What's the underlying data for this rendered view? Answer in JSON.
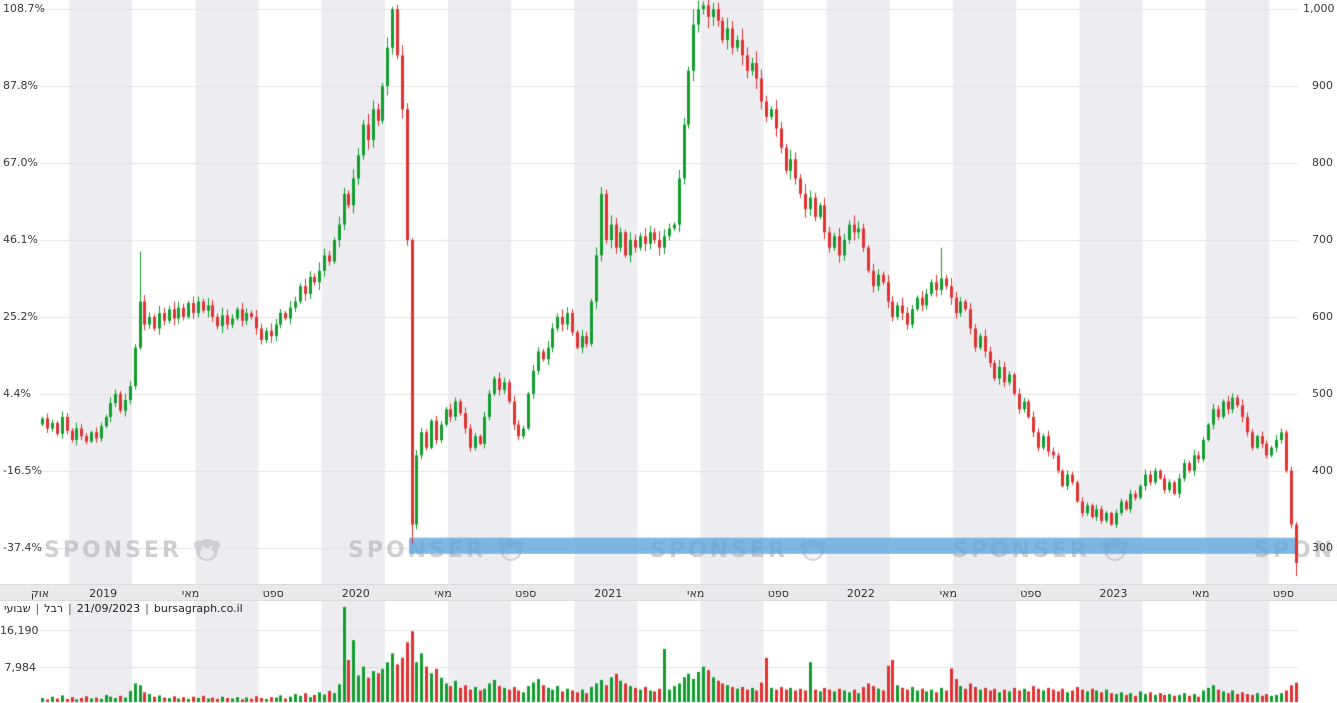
{
  "status": {
    "timeframe": "שבועי",
    "symbol": "רבל",
    "date": "21/09/2023",
    "source": "bursagraph.co.il",
    "separator": "|"
  },
  "watermark": {
    "text": "SPONSER"
  },
  "colors": {
    "up": "#119e2f",
    "down": "#e13232",
    "band": "#5fa6dc",
    "stripe": "#ededf1",
    "grid": "#e3e3e7",
    "axis_strip_bg": "#e9e9ec",
    "label_text": "#3a3a3a",
    "watermark": "#a8a8af"
  },
  "y_axis": {
    "gridlines": [
      {
        "price": 1000,
        "price_label": "1,000",
        "pct_label": "108.7%"
      },
      {
        "price": 900,
        "price_label": "900",
        "pct_label": "87.8%"
      },
      {
        "price": 800,
        "price_label": "800",
        "pct_label": "67.0%"
      },
      {
        "price": 700,
        "price_label": "700",
        "pct_label": "46.1%"
      },
      {
        "price": 600,
        "price_label": "600",
        "pct_label": "25.2%"
      },
      {
        "price": 500,
        "price_label": "500",
        "pct_label": "4.4%"
      },
      {
        "price": 400,
        "price_label": "400",
        "pct_label": "-16.5%"
      },
      {
        "price": 300,
        "price_label": "300",
        "pct_label": "-37.4%"
      }
    ]
  },
  "x_axis": {
    "ticks": [
      {
        "label": "אוק",
        "week": 0
      },
      {
        "label": "2019",
        "week": 13
      },
      {
        "label": "מאי",
        "week": 31
      },
      {
        "label": "ספט",
        "week": 48
      },
      {
        "label": "2020",
        "week": 65
      },
      {
        "label": "מאי",
        "week": 83
      },
      {
        "label": "ספט",
        "week": 100
      },
      {
        "label": "2021",
        "week": 117
      },
      {
        "label": "מאי",
        "week": 135
      },
      {
        "label": "ספט",
        "week": 152
      },
      {
        "label": "2022",
        "week": 169
      },
      {
        "label": "מאי",
        "week": 187
      },
      {
        "label": "ספט",
        "week": 204
      },
      {
        "label": "2023",
        "week": 221
      },
      {
        "label": "מאי",
        "week": 239
      },
      {
        "label": "ספט",
        "week": 256
      }
    ]
  },
  "volume_axis": {
    "gridlines": [
      {
        "value": 16190,
        "label": "16,190"
      },
      {
        "value": 7984,
        "label": "7,984"
      }
    ]
  },
  "chart_data": {
    "type": "candlestick",
    "timeframe": "weekly",
    "x_unit": "week",
    "range": "Oct 2018 - Sep 2023",
    "ylim_price": [
      258,
      1012
    ],
    "first_open": 460,
    "close": [
      468,
      455,
      462,
      448,
      470,
      452,
      440,
      455,
      445,
      438,
      450,
      442,
      458,
      470,
      488,
      500,
      478,
      492,
      510,
      560,
      620,
      590,
      600,
      585,
      605,
      595,
      610,
      598,
      612,
      600,
      618,
      605,
      620,
      608,
      615,
      600,
      588,
      602,
      590,
      598,
      610,
      595,
      605,
      600,
      585,
      570,
      582,
      575,
      590,
      605,
      598,
      612,
      620,
      640,
      630,
      652,
      645,
      660,
      680,
      672,
      700,
      720,
      760,
      745,
      780,
      810,
      850,
      830,
      870,
      855,
      900,
      950,
      1000,
      940,
      870,
      700,
      330,
      420,
      450,
      430,
      465,
      440,
      460,
      480,
      470,
      490,
      475,
      455,
      430,
      445,
      435,
      470,
      500,
      520,
      505,
      515,
      490,
      460,
      445,
      455,
      500,
      530,
      555,
      545,
      560,
      585,
      600,
      590,
      605,
      580,
      560,
      575,
      565,
      620,
      680,
      760,
      700,
      720,
      690,
      710,
      680,
      700,
      690,
      705,
      695,
      710,
      700,
      690,
      705,
      715,
      720,
      780,
      850,
      920,
      980,
      1000,
      1005,
      990,
      1000,
      985,
      960,
      975,
      950,
      960,
      940,
      920,
      930,
      910,
      880,
      860,
      870,
      845,
      820,
      790,
      805,
      780,
      760,
      740,
      755,
      730,
      745,
      710,
      690,
      705,
      680,
      700,
      720,
      710,
      715,
      690,
      660,
      640,
      655,
      645,
      620,
      600,
      615,
      605,
      590,
      610,
      625,
      615,
      630,
      645,
      635,
      650,
      640,
      625,
      605,
      620,
      610,
      585,
      560,
      575,
      555,
      540,
      520,
      535,
      515,
      525,
      500,
      480,
      490,
      470,
      450,
      430,
      445,
      425,
      420,
      400,
      380,
      395,
      385,
      360,
      345,
      355,
      340,
      350,
      335,
      345,
      330,
      345,
      360,
      350,
      370,
      365,
      380,
      395,
      385,
      400,
      390,
      375,
      385,
      370,
      390,
      410,
      400,
      420,
      415,
      440,
      460,
      480,
      470,
      490,
      480,
      495,
      485,
      470,
      450,
      430,
      445,
      435,
      420,
      430,
      440,
      450,
      400,
      330,
      280
    ],
    "volume": [
      900,
      600,
      1200,
      800,
      1500,
      700,
      1100,
      600,
      900,
      1300,
      800,
      1000,
      700,
      1600,
      1200,
      900,
      1400,
      1000,
      2500,
      4200,
      3800,
      2200,
      1800,
      1200,
      1500,
      1000,
      900,
      1300,
      800,
      1100,
      700,
      1200,
      900,
      1400,
      800,
      1000,
      700,
      1200,
      900,
      800,
      1100,
      600,
      1000,
      750,
      1300,
      900,
      700,
      1100,
      1000,
      1500,
      800,
      1200,
      1800,
      1400,
      2000,
      1100,
      1600,
      2200,
      1700,
      2500,
      2000,
      4000,
      21500,
      9500,
      14000,
      6000,
      8000,
      5500,
      7000,
      6500,
      7500,
      9000,
      11000,
      8500,
      10000,
      13500,
      16000,
      9000,
      11000,
      8000,
      6500,
      7500,
      5500,
      4200,
      3600,
      4800,
      3200,
      3800,
      2800,
      3400,
      2600,
      3000,
      4200,
      5000,
      3600,
      3200,
      2800,
      3400,
      2600,
      2200,
      3600,
      4400,
      5200,
      3800,
      3200,
      2800,
      3600,
      2400,
      3000,
      2600,
      2200,
      2800,
      2000,
      3400,
      4200,
      5000,
      3800,
      5600,
      6400,
      4800,
      4200,
      3600,
      3200,
      2800,
      3400,
      2600,
      2400,
      3000,
      12000,
      2800,
      3600,
      4200,
      5600,
      6400,
      5200,
      6800,
      8000,
      7200,
      5600,
      4800,
      4200,
      3800,
      3400,
      3000,
      3400,
      2800,
      3200,
      2600,
      4400,
      10000,
      3200,
      2800,
      3400,
      2800,
      3200,
      2600,
      3000,
      2600,
      9000,
      2800,
      2400,
      3200,
      2800,
      2400,
      3000,
      2600,
      2200,
      2800,
      2000,
      3400,
      4200,
      3600,
      3000,
      2600,
      8200,
      9500,
      3800,
      3200,
      2800,
      3400,
      2600,
      3000,
      2400,
      2800,
      2200,
      3200,
      2600,
      7600,
      5200,
      3600,
      3000,
      4200,
      3400,
      2800,
      3200,
      2600,
      3000,
      2200,
      2800,
      2400,
      3200,
      2600,
      3000,
      2400,
      3600,
      3000,
      2600,
      3200,
      2800,
      2400,
      3000,
      2200,
      2600,
      3400,
      2800,
      2400,
      3000,
      2600,
      2200,
      2800,
      2000,
      1800,
      2200,
      1600,
      2000,
      1400,
      2400,
      1800,
      2200,
      1600,
      2000,
      1600,
      1800,
      1400,
      1600,
      2000,
      1400,
      1800,
      1200,
      2600,
      3200,
      3800,
      2800,
      2400,
      2000,
      2600,
      1800,
      2200,
      1800,
      1600,
      2000,
      1400,
      1800,
      1400,
      1600,
      2000,
      2600,
      3800,
      4400
    ],
    "overrides": {
      "20": {
        "high": 685
      },
      "72": {
        "high": 1003
      },
      "76": {
        "low": 305
      },
      "134": {
        "high": 1000
      },
      "136": {
        "high": 1010
      },
      "138": {
        "high": 1008
      },
      "185": {
        "high": 690
      },
      "258": {
        "low": 263
      }
    },
    "support_band": {
      "price_top": 313,
      "price_bottom": 292,
      "from_week": 76
    },
    "volume_max_gridline": 16190
  }
}
